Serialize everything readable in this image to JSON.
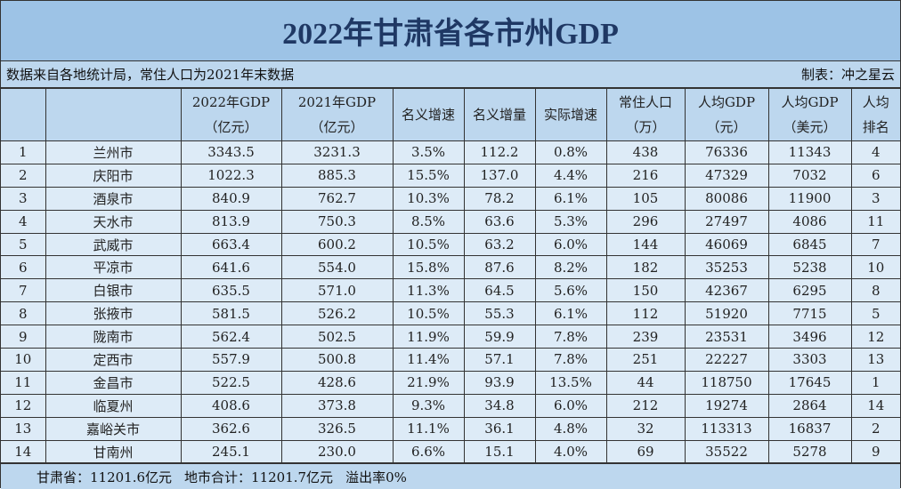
{
  "title": "2022年甘肃省各市州GDP",
  "source_note": "数据来自各地统计局，常住人口为2021年末数据",
  "author": "制表：冲之星云",
  "headers": [
    {
      "l1": "",
      "l2": ""
    },
    {
      "l1": "",
      "l2": ""
    },
    {
      "l1": "2022年GDP",
      "l2": "（亿元）"
    },
    {
      "l1": "2021年GDP",
      "l2": "（亿元）"
    },
    {
      "l1": "名义增速",
      "l2": ""
    },
    {
      "l1": "名义增量",
      "l2": ""
    },
    {
      "l1": "实际增速",
      "l2": ""
    },
    {
      "l1": "常住人口",
      "l2": "（万）"
    },
    {
      "l1": "人均GDP",
      "l2": "（元）"
    },
    {
      "l1": "人均GDP",
      "l2": "（美元）"
    },
    {
      "l1": "人均",
      "l2": "排名"
    }
  ],
  "rows": [
    [
      "1",
      "兰州市",
      "3343.5",
      "3231.3",
      "3.5%",
      "112.2",
      "0.8%",
      "438",
      "76336",
      "11343",
      "4"
    ],
    [
      "2",
      "庆阳市",
      "1022.3",
      "885.3",
      "15.5%",
      "137.0",
      "4.4%",
      "216",
      "47329",
      "7032",
      "6"
    ],
    [
      "3",
      "酒泉市",
      "840.9",
      "762.7",
      "10.3%",
      "78.2",
      "6.1%",
      "105",
      "80086",
      "11900",
      "3"
    ],
    [
      "4",
      "天水市",
      "813.9",
      "750.3",
      "8.5%",
      "63.6",
      "5.3%",
      "296",
      "27497",
      "4086",
      "11"
    ],
    [
      "5",
      "武威市",
      "663.4",
      "600.2",
      "10.5%",
      "63.2",
      "6.0%",
      "144",
      "46069",
      "6845",
      "7"
    ],
    [
      "6",
      "平凉市",
      "641.6",
      "554.0",
      "15.8%",
      "87.6",
      "8.2%",
      "182",
      "35253",
      "5238",
      "10"
    ],
    [
      "7",
      "白银市",
      "635.5",
      "571.0",
      "11.3%",
      "64.5",
      "5.6%",
      "150",
      "42367",
      "6295",
      "8"
    ],
    [
      "8",
      "张掖市",
      "581.5",
      "526.2",
      "10.5%",
      "55.3",
      "6.1%",
      "112",
      "51920",
      "7715",
      "5"
    ],
    [
      "9",
      "陇南市",
      "562.4",
      "502.5",
      "11.9%",
      "59.9",
      "7.8%",
      "239",
      "23531",
      "3496",
      "12"
    ],
    [
      "10",
      "定西市",
      "557.9",
      "500.8",
      "11.4%",
      "57.1",
      "7.8%",
      "251",
      "22227",
      "3303",
      "13"
    ],
    [
      "11",
      "金昌市",
      "522.5",
      "428.6",
      "21.9%",
      "93.9",
      "13.5%",
      "44",
      "118750",
      "17645",
      "1"
    ],
    [
      "12",
      "临夏州",
      "408.6",
      "373.8",
      "9.3%",
      "34.8",
      "6.0%",
      "212",
      "19274",
      "2864",
      "14"
    ],
    [
      "13",
      "嘉峪关市",
      "362.6",
      "326.5",
      "11.1%",
      "36.1",
      "4.8%",
      "32",
      "113313",
      "16837",
      "2"
    ],
    [
      "14",
      "甘南州",
      "245.1",
      "230.0",
      "6.6%",
      "15.1",
      "4.0%",
      "69",
      "35522",
      "5278",
      "9"
    ]
  ],
  "footer": {
    "province": "甘肃省：11201.6亿元",
    "sum": "地市合计：11201.7亿元",
    "overflow": "溢出率0%"
  }
}
